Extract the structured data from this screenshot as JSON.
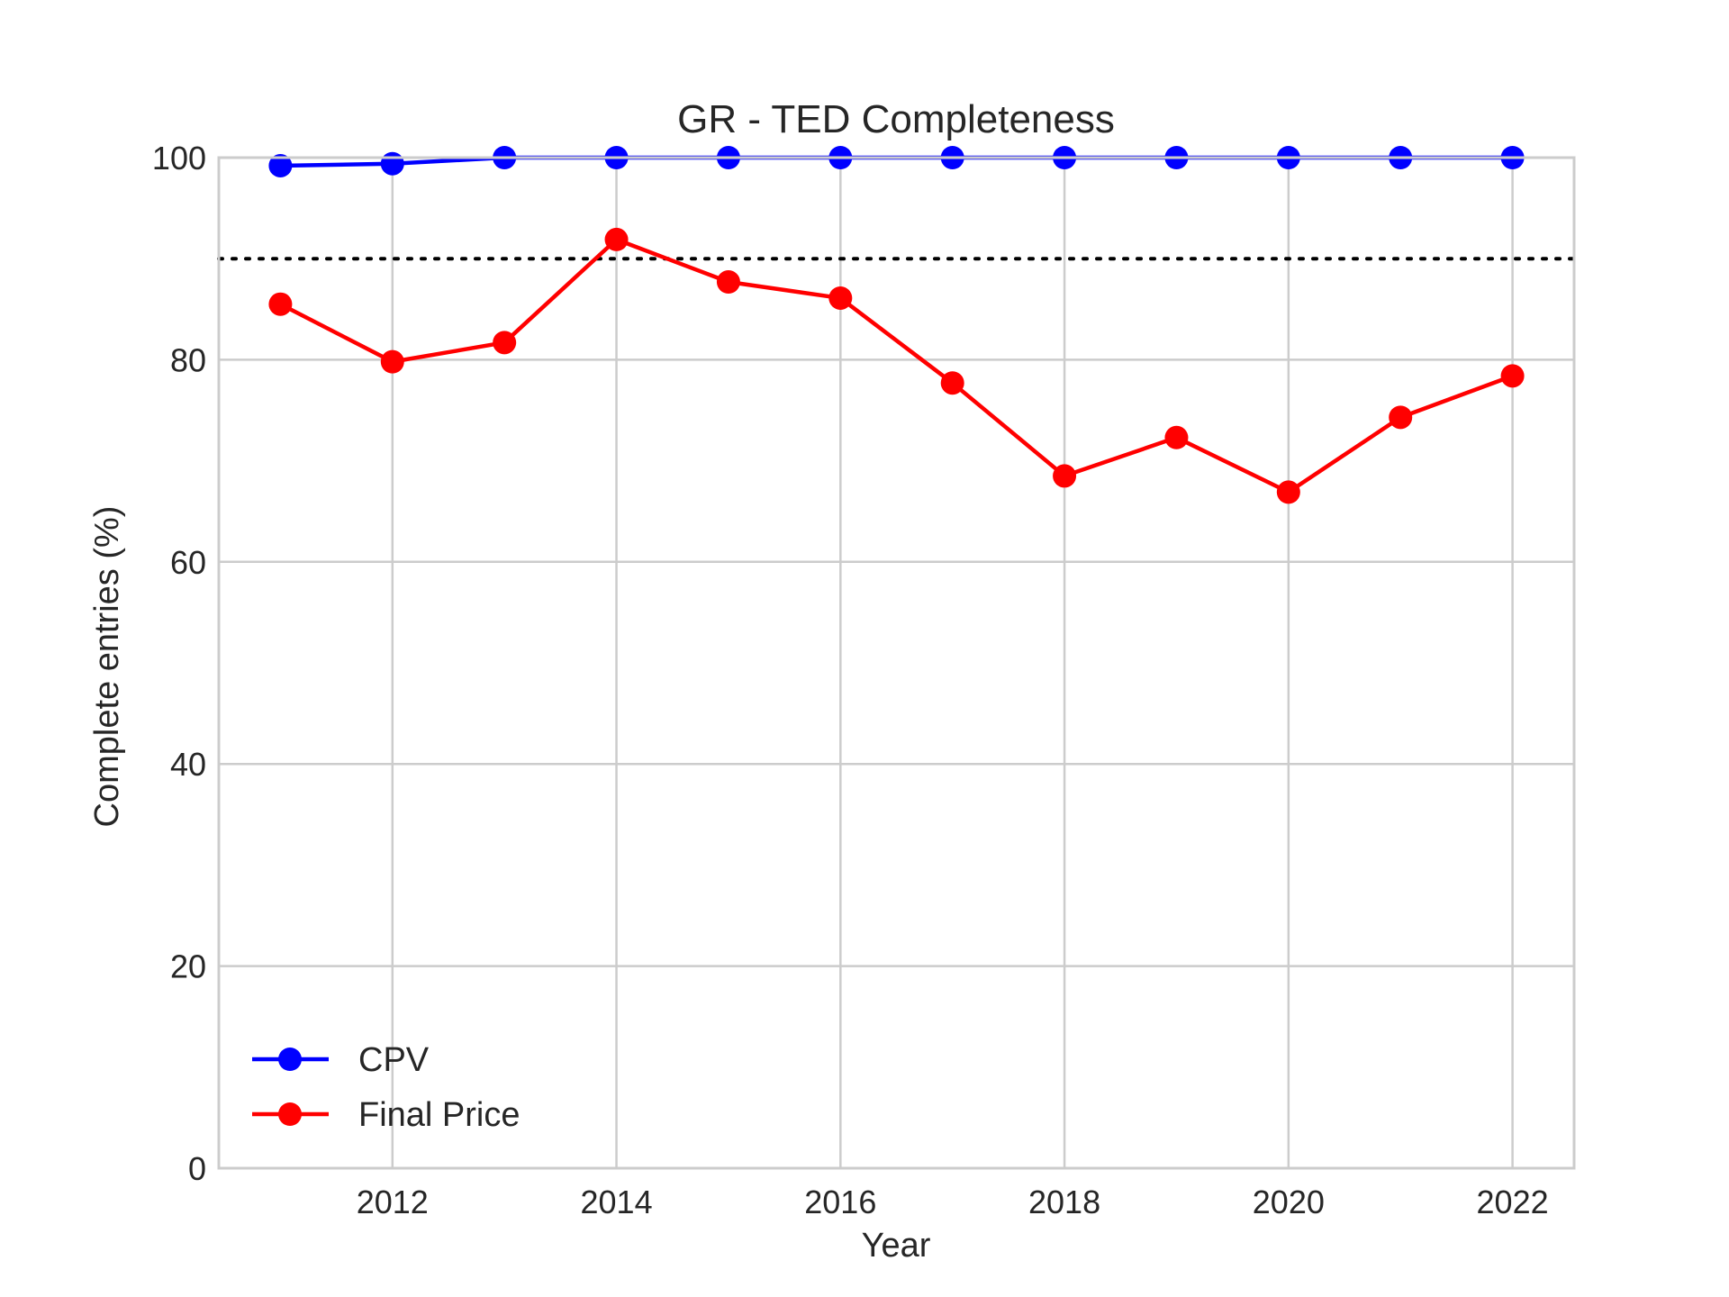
{
  "chart_data": {
    "type": "line",
    "title": "GR - TED Completeness",
    "xlabel": "Year",
    "ylabel": "Complete entries (%)",
    "x": [
      2011,
      2012,
      2013,
      2014,
      2015,
      2016,
      2017,
      2018,
      2019,
      2020,
      2021,
      2022
    ],
    "xlim": [
      2010.45,
      2022.55
    ],
    "ylim": [
      0,
      100
    ],
    "xticks": [
      2012,
      2014,
      2016,
      2018,
      2020,
      2022
    ],
    "yticks": [
      0,
      20,
      40,
      60,
      80,
      100
    ],
    "grid": true,
    "legend_position": "lower-left",
    "series": [
      {
        "name": "CPV",
        "color": "#0000ff",
        "marker": "circle",
        "values": [
          99.2,
          99.4,
          100,
          100,
          100,
          100,
          100,
          100,
          100,
          100,
          100,
          100
        ]
      },
      {
        "name": "Final Price",
        "color": "#ff0000",
        "marker": "circle",
        "values": [
          85.5,
          79.8,
          81.7,
          91.9,
          87.7,
          86.1,
          77.7,
          68.5,
          72.3,
          66.9,
          74.3,
          78.4
        ]
      }
    ],
    "reference_line": {
      "y": 90,
      "style": "dotted",
      "color": "#000000"
    }
  }
}
